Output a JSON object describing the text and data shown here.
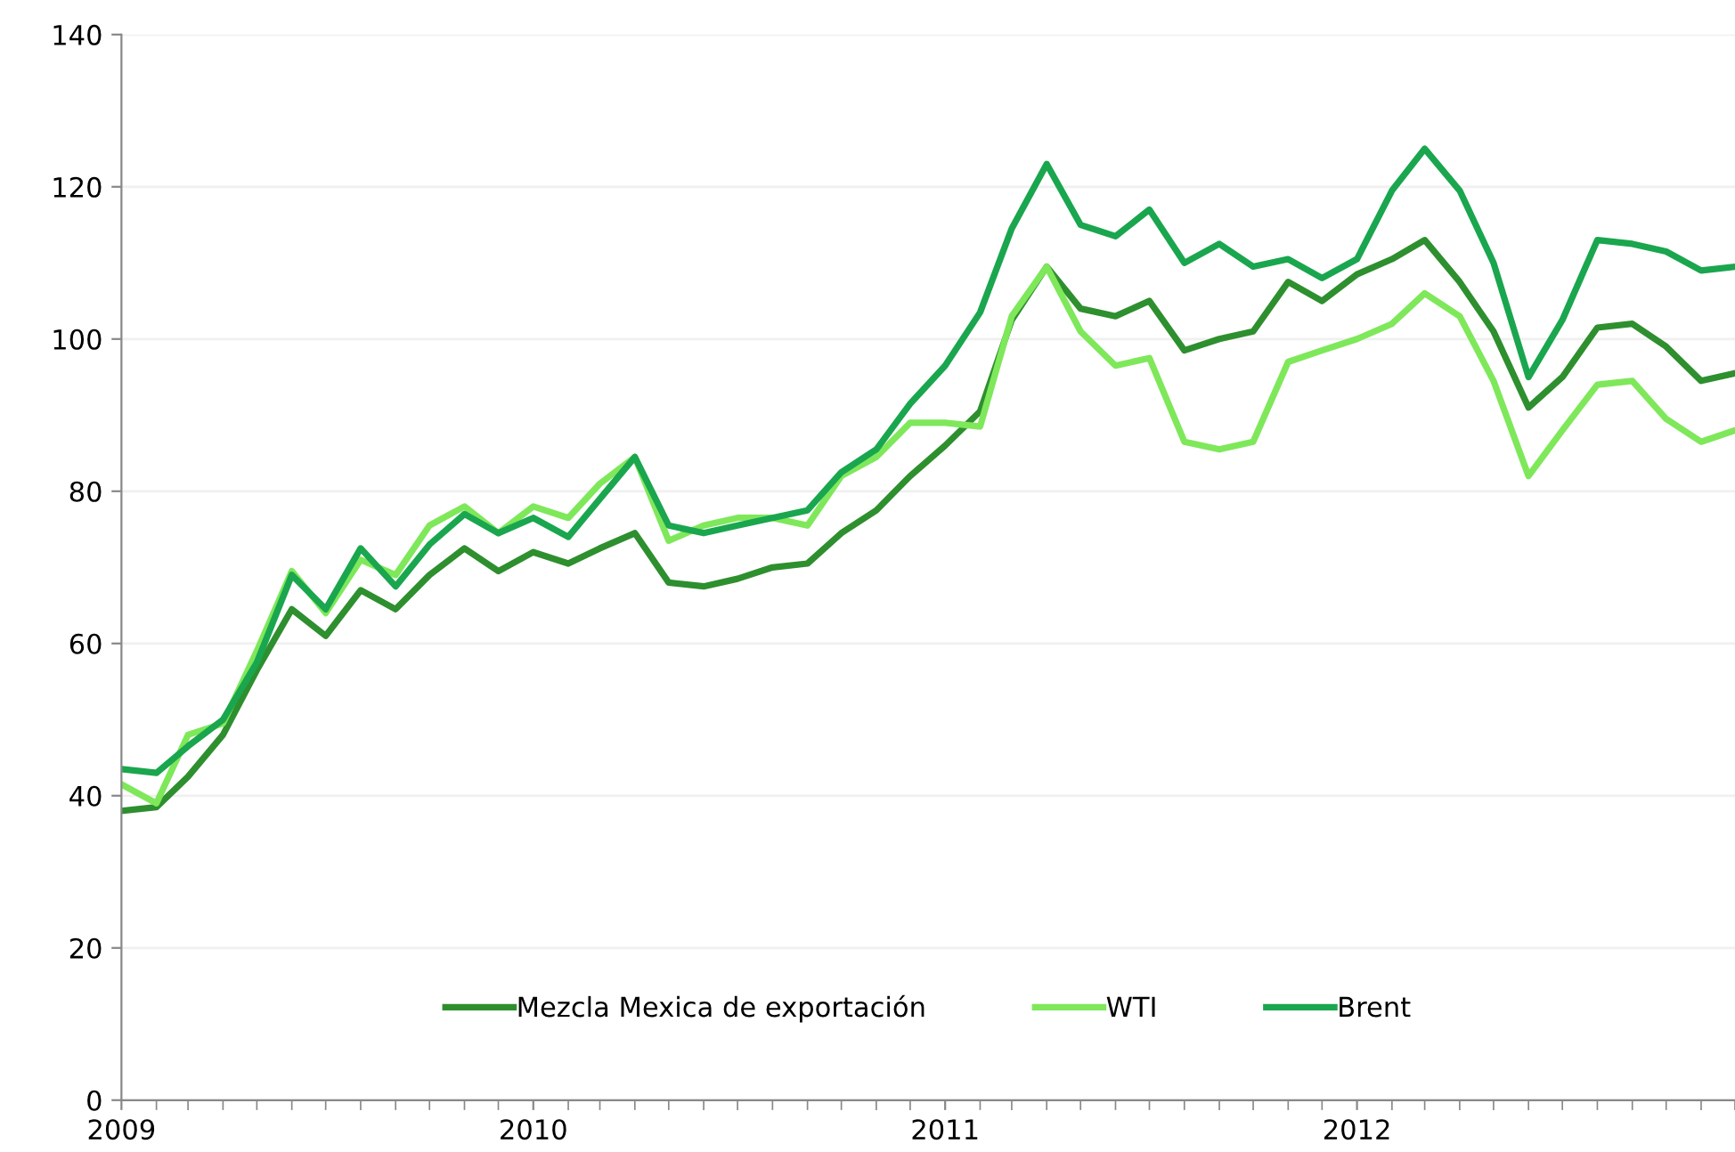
{
  "chart_data": {
    "type": "line",
    "x": [
      "2009-01",
      "2009-02",
      "2009-03",
      "2009-04",
      "2009-05",
      "2009-06",
      "2009-07",
      "2009-08",
      "2009-09",
      "2009-10",
      "2009-11",
      "2009-12",
      "2010-01",
      "2010-02",
      "2010-03",
      "2010-04",
      "2010-05",
      "2010-06",
      "2010-07",
      "2010-08",
      "2010-09",
      "2010-10",
      "2010-11",
      "2010-12",
      "2011-01",
      "2011-02",
      "2011-03",
      "2011-04",
      "2011-05",
      "2011-06",
      "2011-07",
      "2011-08",
      "2011-09",
      "2011-10",
      "2011-11",
      "2011-12",
      "2012-01",
      "2012-02",
      "2012-03",
      "2012-04",
      "2012-05",
      "2012-06",
      "2012-07",
      "2012-08",
      "2012-09",
      "2012-10",
      "2012-11",
      "2012-12"
    ],
    "series": [
      {
        "name": "Mezcla Mexica de exportación",
        "color": "#2e8f2e",
        "values": [
          38,
          38.5,
          42.5,
          48,
          56.5,
          64.5,
          61,
          67,
          64.5,
          69,
          72.5,
          69.5,
          72,
          70.5,
          72.5,
          74.5,
          68,
          67.5,
          68.5,
          70,
          70.5,
          74.5,
          77.5,
          82,
          86,
          90.5,
          102.5,
          109.5,
          104,
          103,
          105,
          98.5,
          100,
          101,
          107.5,
          105,
          108.5,
          110.5,
          113,
          107.5,
          101,
          91,
          95,
          101.5,
          102,
          99,
          94.5,
          95.5
        ]
      },
      {
        "name": "WTI",
        "color": "#7ee85a",
        "values": [
          41.5,
          39,
          48,
          49.5,
          59,
          69.5,
          64,
          71,
          69,
          75.5,
          78,
          74.5,
          78,
          76.5,
          81,
          84.5,
          73.5,
          75.5,
          76.5,
          76.5,
          75.5,
          82,
          84.5,
          89,
          89,
          88.5,
          103,
          109.5,
          101,
          96.5,
          97.5,
          86.5,
          85.5,
          86.5,
          97,
          98.5,
          100,
          102,
          106,
          103,
          94.5,
          82,
          88,
          94,
          94.5,
          89.5,
          86.5,
          88
        ]
      },
      {
        "name": "Brent",
        "color": "#1aa64e",
        "values": [
          43.5,
          43,
          46.5,
          50,
          57.5,
          69,
          64.5,
          72.5,
          67.5,
          73,
          77,
          74.5,
          76.5,
          74,
          79,
          84.5,
          75.5,
          74.5,
          75.5,
          76.5,
          77.5,
          82.5,
          85.5,
          91.5,
          96.5,
          103.5,
          114.5,
          123,
          115,
          113.5,
          117,
          110,
          112.5,
          109.5,
          110.5,
          108,
          110.5,
          119.5,
          125,
          119.5,
          110,
          95,
          102.5,
          113,
          112.5,
          111.5,
          109,
          109.5
        ]
      }
    ],
    "xlim": [
      "2009-01",
      "2012-12"
    ],
    "xticks": [
      "2009",
      "2010",
      "2011",
      "2012"
    ],
    "ylim": [
      0,
      140
    ],
    "yticks": [
      0,
      20,
      40,
      60,
      80,
      100,
      120,
      140
    ],
    "grid": "y",
    "legend": "bottom",
    "marker": "none",
    "line_style": "solid"
  }
}
